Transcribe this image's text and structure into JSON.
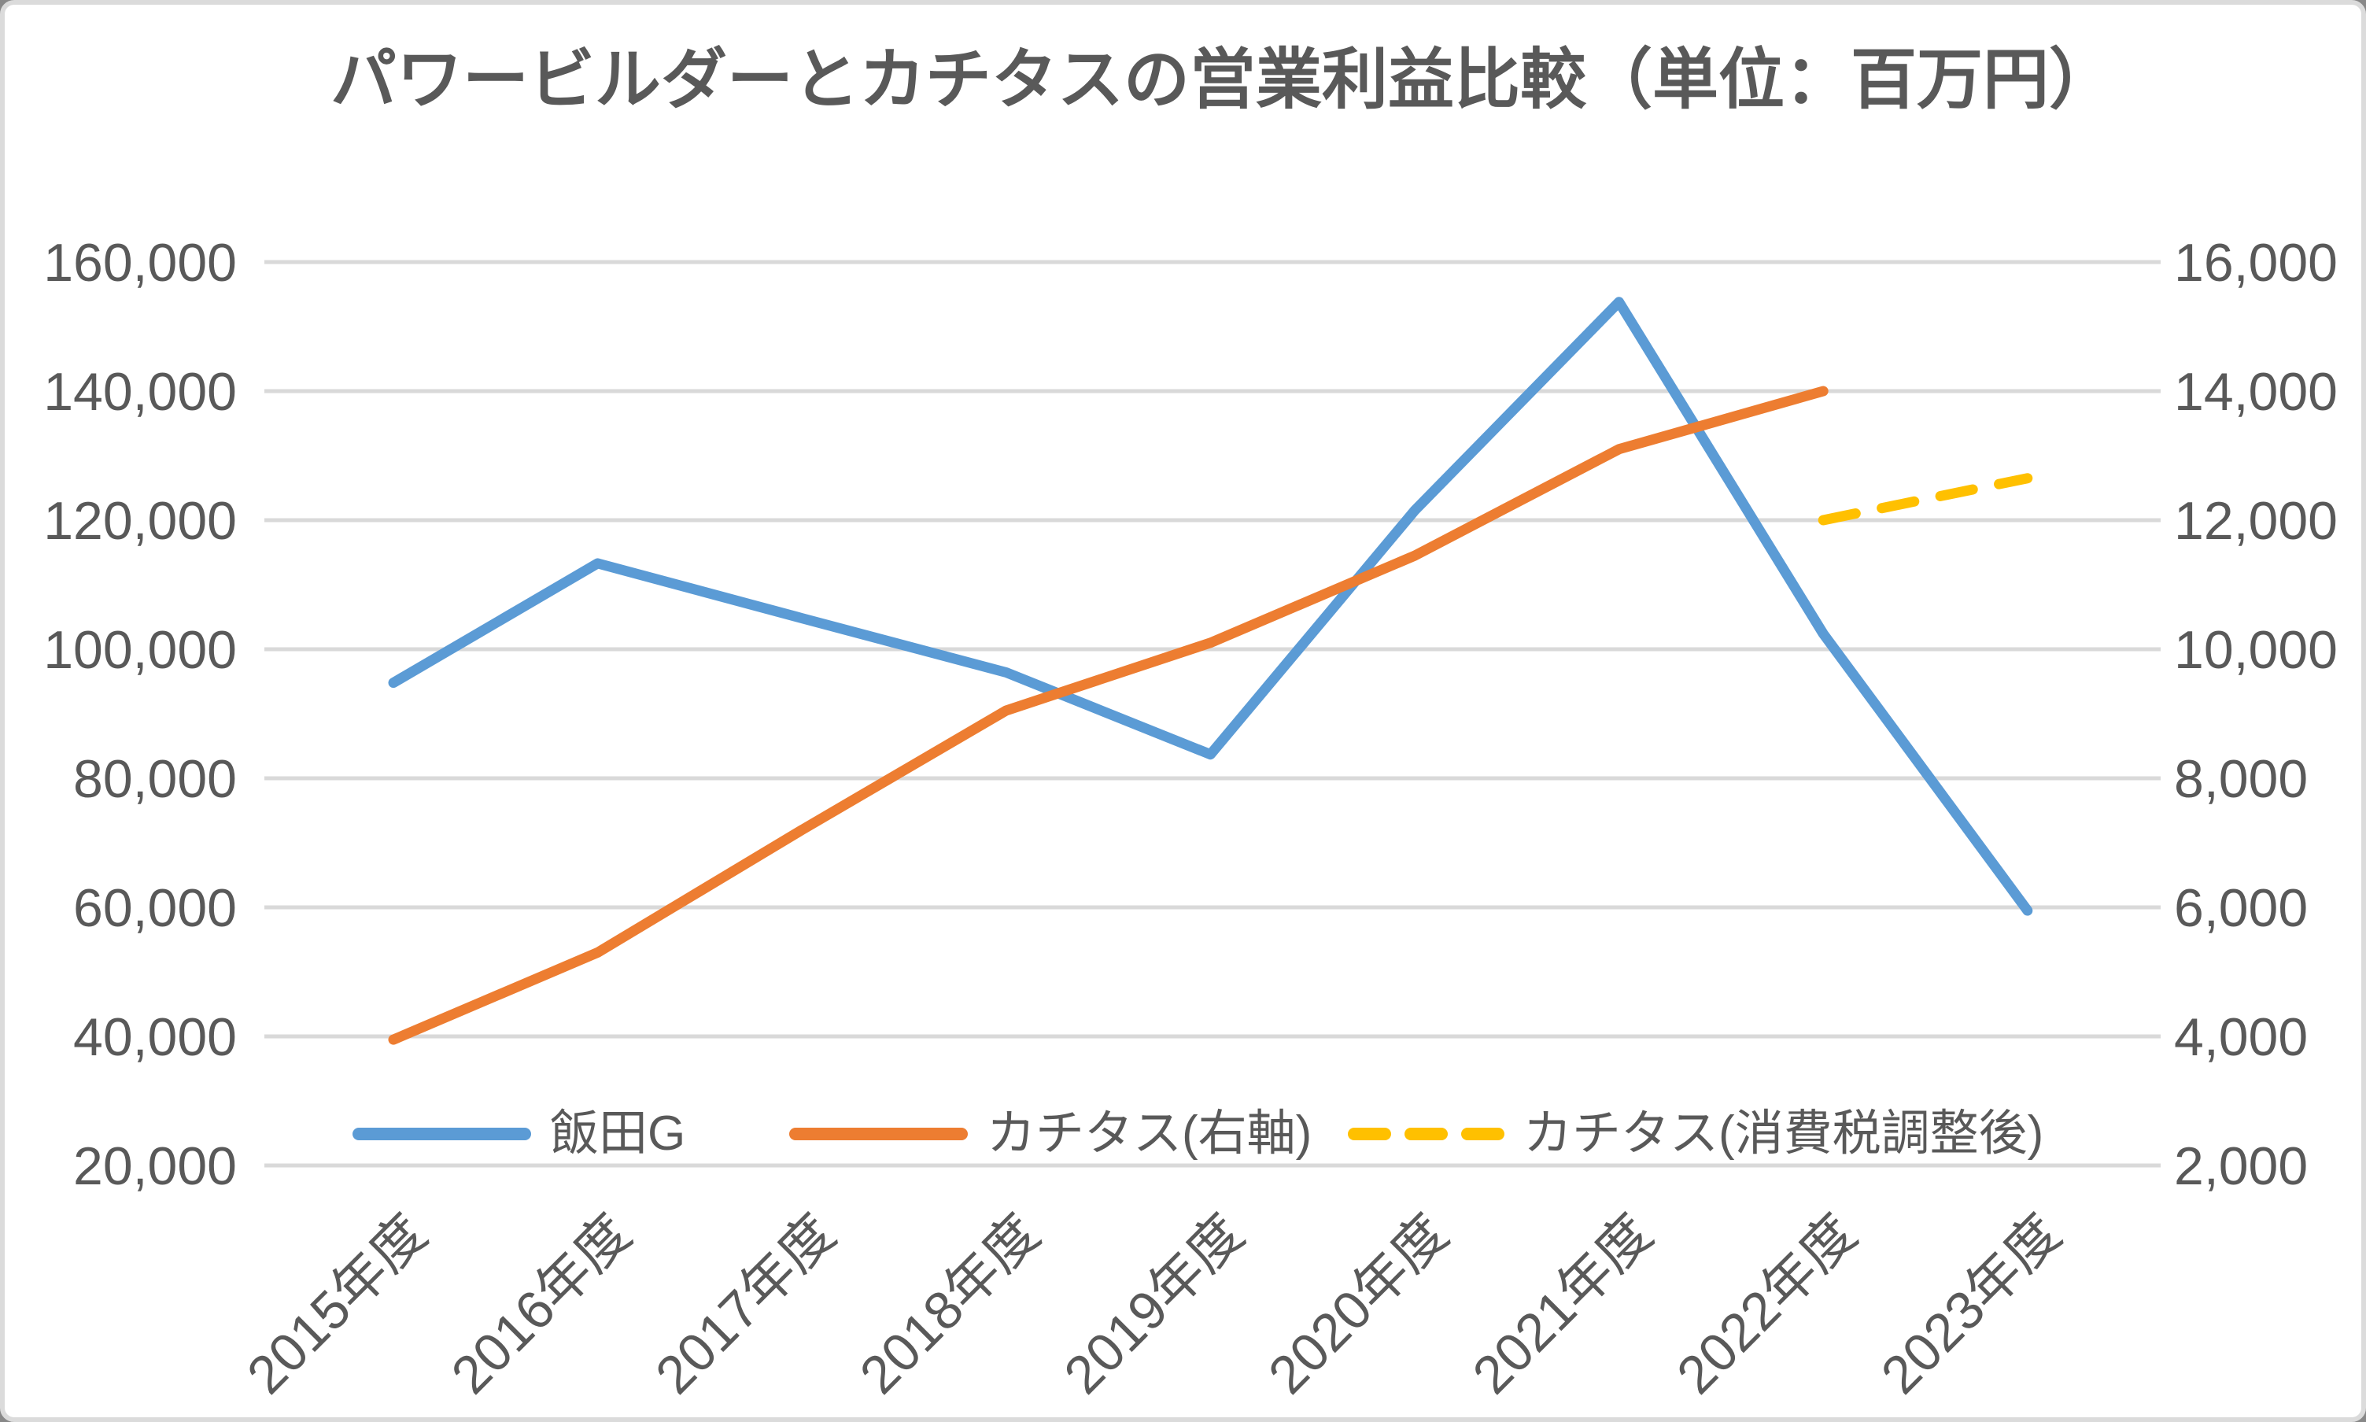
{
  "title": "パワービルダーとカチタスの営業利益比較（単位：百万円）",
  "colors": {
    "series_blue": "#5B9BD5",
    "series_orange": "#ED7D31",
    "series_yellow": "#FFC000",
    "gridline": "#D9D9D9",
    "axis_text": "#595959",
    "title_text": "#595959",
    "frame_border": "#DBDBDB",
    "background": "#FFFFFF"
  },
  "chart_data": {
    "type": "line",
    "title": "パワービルダーとカチタスの営業利益比較（単位：百万円）",
    "categories": [
      "2015年度",
      "2016年度",
      "2017年度",
      "2018年度",
      "2019年度",
      "2020年度",
      "2021年度",
      "2022年度",
      "2023年度"
    ],
    "series": [
      {
        "name": "飯田G",
        "axis": "left",
        "color": "#5B9BD5",
        "line_style": "solid",
        "values": [
          94800,
          113300,
          104800,
          96400,
          83700,
          121500,
          153800,
          102400,
          59500
        ]
      },
      {
        "name": "カチタス(右軸)",
        "axis": "right",
        "color": "#ED7D31",
        "line_style": "solid",
        "values": [
          3950,
          5300,
          7200,
          9050,
          10100,
          11450,
          13100,
          14000,
          null
        ]
      },
      {
        "name": "カチタス(消費税調整後)",
        "axis": "right",
        "color": "#FFC000",
        "line_style": "dashed",
        "values": [
          null,
          null,
          null,
          null,
          null,
          null,
          null,
          12000,
          12650
        ]
      }
    ],
    "left_axis": {
      "min": 20000,
      "max": 160000,
      "step": 20000,
      "tick_labels": [
        "160,000",
        "140,000",
        "120,000",
        "100,000",
        "80,000",
        "60,000",
        "40,000",
        "20,000"
      ]
    },
    "right_axis": {
      "min": 2000,
      "max": 16000,
      "step": 2000,
      "tick_labels": [
        "16,000",
        "14,000",
        "12,000",
        "10,000",
        "8,000",
        "6,000",
        "4,000",
        "2,000"
      ]
    },
    "grid": true,
    "legend_position": "bottom"
  }
}
